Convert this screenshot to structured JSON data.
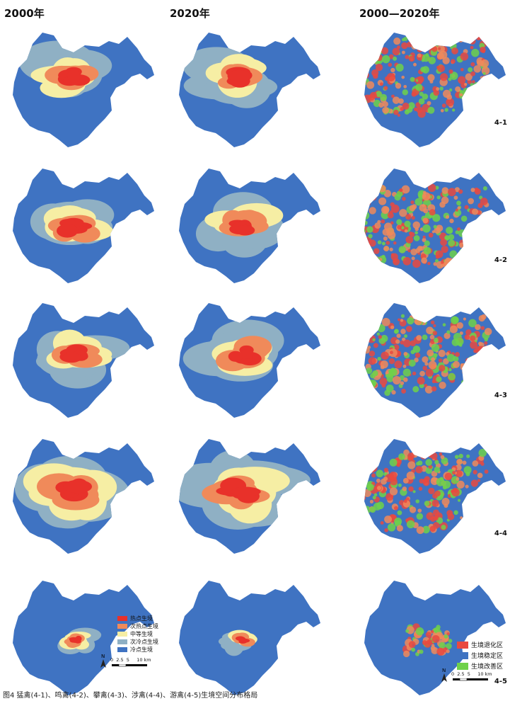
{
  "columns": [
    "2000年",
    "2020年",
    "2000—2020年"
  ],
  "rows": [
    "4-1",
    "4-2",
    "4-3",
    "4-4",
    "4-5"
  ],
  "legend_habitat": [
    {
      "label": "热点生境",
      "color": "#e8312a"
    },
    {
      "label": "次热点生境",
      "color": "#f08a5a"
    },
    {
      "label": "中等生境",
      "color": "#f6eea4"
    },
    {
      "label": "次冷点生境",
      "color": "#8fb0c4"
    },
    {
      "label": "冷点生境",
      "color": "#3f73c2"
    }
  ],
  "legend_change": [
    {
      "label": "生境退化区",
      "color": "#e9493f"
    },
    {
      "label": "生境稳定区",
      "color": "#3f73c2"
    },
    {
      "label": "生境改善区",
      "color": "#6fd14a"
    }
  ],
  "scale": {
    "north": "N",
    "ticks": "0  2.5  5     10 km"
  },
  "caption": "图4  猛禽(4-1)、鸣禽(4-2)、攀禽(4-3)、涉禽(4-4)、游禽(4-5)生境空间分布格局"
}
